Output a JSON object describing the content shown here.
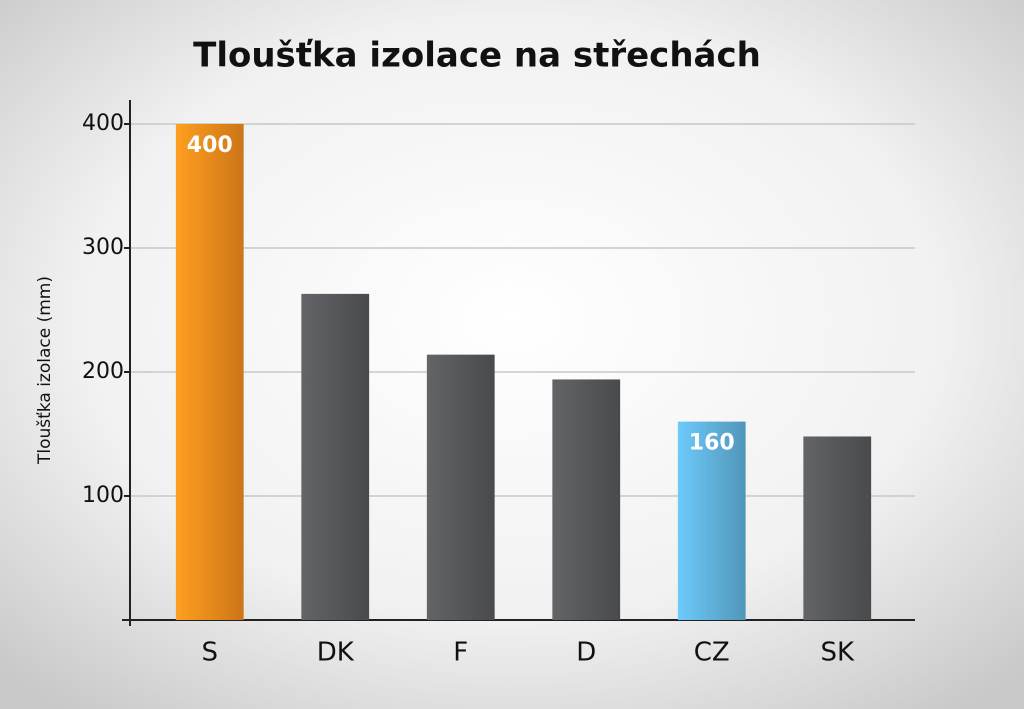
{
  "chart_data": {
    "type": "bar",
    "title": "Tloušťka izolace na střechách",
    "y_label": "Tloušťka izolace (mm)",
    "categories": [
      "S",
      "DK",
      "F",
      "D",
      "CZ",
      "SK"
    ],
    "values": [
      400,
      263,
      214,
      194,
      160,
      148
    ],
    "colors": [
      "#f08a1c",
      "#55575a",
      "#55575a",
      "#55575a",
      "#5fb0da",
      "#55575a"
    ],
    "data_labels": [
      true,
      false,
      false,
      false,
      true,
      false
    ],
    "ylim": [
      0,
      420
    ],
    "yticks": [
      100,
      200,
      300,
      400
    ],
    "grid": true
  }
}
